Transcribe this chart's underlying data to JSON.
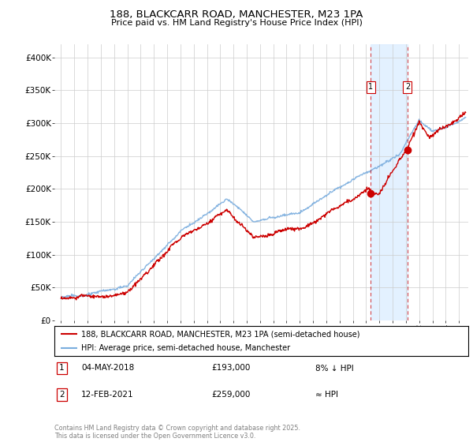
{
  "title": "188, BLACKCARR ROAD, MANCHESTER, M23 1PA",
  "subtitle": "Price paid vs. HM Land Registry's House Price Index (HPI)",
  "ylabel_ticks": [
    "£0",
    "£50K",
    "£100K",
    "£150K",
    "£200K",
    "£250K",
    "£300K",
    "£350K",
    "£400K"
  ],
  "ylim": [
    0,
    420000
  ],
  "xlim_start": 1994.5,
  "xlim_end": 2025.7,
  "marker1_x": 2018.34,
  "marker1_y": 193000,
  "marker2_x": 2021.12,
  "marker2_y": 259000,
  "vline1_x": 2018.34,
  "vline2_x": 2021.12,
  "shade_color": "#ddeeff",
  "legend1_label": "188, BLACKCARR ROAD, MANCHESTER, M23 1PA (semi-detached house)",
  "legend2_label": "HPI: Average price, semi-detached house, Manchester",
  "footer": "Contains HM Land Registry data © Crown copyright and database right 2025.\nThis data is licensed under the Open Government Licence v3.0.",
  "red_color": "#cc0000",
  "blue_color": "#7aadde",
  "background_color": "#ffffff",
  "grid_color": "#cccccc"
}
